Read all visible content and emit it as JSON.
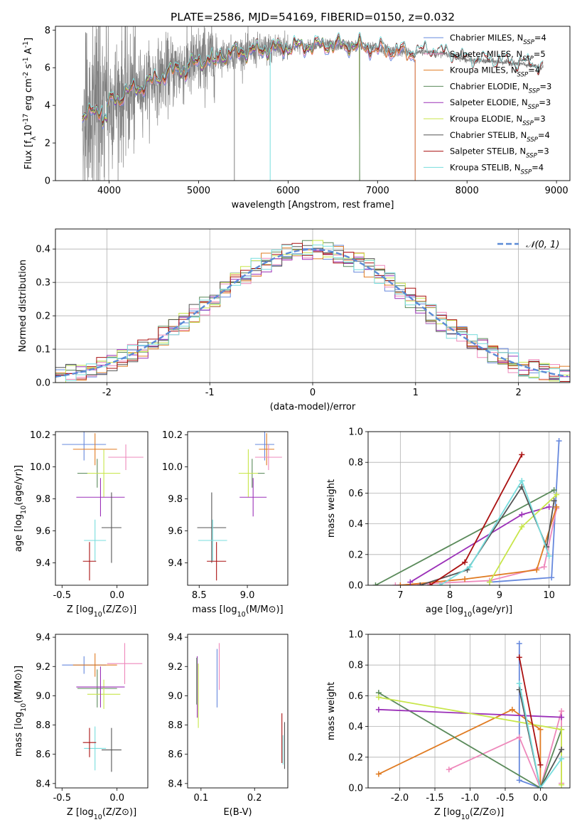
{
  "figure": {
    "title": "PLATE=2586, MJD=54169, FIBERID=0150, z=0.032"
  },
  "colors": {
    "Chabrier MILES": "#6688dd",
    "Salpeter MILES": "#ee88bb",
    "Kroupa MILES": "#e07b22",
    "Chabrier ELODIE": "#5a8a5a",
    "Salpeter ELODIE": "#9b30b8",
    "Kroupa ELODIE": "#c8e64a",
    "Chabrier STELIB": "#555555",
    "Salpeter STELIB": "#aa1111",
    "Kroupa STELIB": "#77dddd",
    "data": "#808080",
    "normal_curve": "#5b8bd6"
  },
  "chart_data": [
    {
      "id": "spectrum",
      "type": "line",
      "xlabel": "wavelength [Angstrom, rest frame]",
      "ylabel": "Flux [f_λ10^-17 erg cm^-2 s^-1 A^-1]",
      "xlim": [
        3400,
        9150
      ],
      "ylim": [
        0,
        8.2
      ],
      "xticks": [
        4000,
        5000,
        6000,
        7000,
        8000,
        9000
      ],
      "yticks": [
        0,
        2,
        4,
        6,
        8
      ],
      "legend_position": "top-right",
      "data_range": [
        3700,
        8850
      ],
      "continuum": [
        [
          3700,
          3.3
        ],
        [
          3800,
          3.6
        ],
        [
          3900,
          3.9
        ],
        [
          4000,
          4.2
        ],
        [
          4100,
          4.4
        ],
        [
          4200,
          4.7
        ],
        [
          4400,
          5.1
        ],
        [
          4600,
          5.6
        ],
        [
          4800,
          6.0
        ],
        [
          5000,
          6.3
        ],
        [
          5200,
          6.6
        ],
        [
          5400,
          6.8
        ],
        [
          5600,
          6.9
        ],
        [
          5800,
          7.0
        ],
        [
          6000,
          7.1
        ],
        [
          6200,
          7.15
        ],
        [
          6400,
          7.2
        ],
        [
          6600,
          7.2
        ],
        [
          6800,
          7.15
        ],
        [
          7000,
          7.0
        ],
        [
          7200,
          6.9
        ],
        [
          7400,
          6.8
        ],
        [
          7600,
          6.85
        ],
        [
          7800,
          6.7
        ],
        [
          8000,
          6.4
        ],
        [
          8200,
          6.35
        ],
        [
          8400,
          6.3
        ],
        [
          8600,
          6.2
        ],
        [
          8850,
          6.0
        ]
      ],
      "model_cutoffs": {
        "MILES": 7420,
        "ELODIE": 6800,
        "STELIB": 8850
      },
      "legend": [
        {
          "name": "Chabrier MILES",
          "label": "Chabrier MILES, N",
          "nssp": "=4"
        },
        {
          "name": "Salpeter MILES",
          "label": "Salpeter MILES, N",
          "nssp": "=5"
        },
        {
          "name": "Kroupa MILES",
          "label": "Kroupa MILES, N",
          "nssp": "=4"
        },
        {
          "name": "Chabrier ELODIE",
          "label": "Chabrier ELODIE, N",
          "nssp": "=3"
        },
        {
          "name": "Salpeter ELODIE",
          "label": "Salpeter ELODIE, N",
          "nssp": "=3"
        },
        {
          "name": "Kroupa ELODIE",
          "label": "Kroupa ELODIE, N",
          "nssp": "=3"
        },
        {
          "name": "Chabrier STELIB",
          "label": "Chabrier STELIB, N",
          "nssp": "=4"
        },
        {
          "name": "Salpeter STELIB",
          "label": "Salpeter STELIB, N",
          "nssp": "=3"
        },
        {
          "name": "Kroupa STELIB",
          "label": "Kroupa STELIB, N",
          "nssp": "=4"
        }
      ],
      "nssp_subscript": "SSP"
    },
    {
      "id": "residuals",
      "type": "histogram",
      "xlabel": "(data-model)/error",
      "ylabel": "Normed distribution",
      "xlim": [
        -2.5,
        2.5
      ],
      "ylim": [
        0,
        0.46
      ],
      "xticks": [
        -2,
        -1,
        0,
        1,
        2
      ],
      "yticks": [
        0.0,
        0.1,
        0.2,
        0.3,
        0.4
      ],
      "grid": true,
      "bin_width": 0.1,
      "legend_position": "top-right",
      "legend_label": "𝒩(0, 1)"
    },
    {
      "id": "age_vs_Z",
      "type": "errorbar",
      "xlabel": "Z [log10(Z/Z⊙)]",
      "ylabel": "age  [log10(age/yr)]",
      "xlim": [
        -0.56,
        0.28
      ],
      "ylim": [
        9.26,
        10.22
      ],
      "xticks": [
        -0.5,
        0.0
      ],
      "yticks": [
        9.4,
        9.6,
        9.8,
        10.0,
        10.2
      ],
      "points": [
        {
          "name": "Chabrier MILES",
          "x": -0.3,
          "xerr": 0.2,
          "y": 10.14,
          "yerr": 0.1
        },
        {
          "name": "Kroupa MILES",
          "x": -0.2,
          "xerr": 0.2,
          "y": 10.11,
          "yerr": 0.1
        },
        {
          "name": "Salpeter MILES",
          "x": 0.08,
          "xerr": 0.16,
          "y": 10.06,
          "yerr": 0.08
        },
        {
          "name": "Chabrier ELODIE",
          "x": -0.18,
          "xerr": 0.18,
          "y": 9.96,
          "yerr": 0.09
        },
        {
          "name": "Kroupa ELODIE",
          "x": -0.12,
          "xerr": 0.15,
          "y": 9.96,
          "yerr": 0.15
        },
        {
          "name": "Salpeter ELODIE",
          "x": -0.15,
          "xerr": 0.22,
          "y": 9.81,
          "yerr": 0.12
        },
        {
          "name": "Chabrier STELIB",
          "x": -0.05,
          "xerr": 0.09,
          "y": 9.62,
          "yerr": 0.22
        },
        {
          "name": "Kroupa STELIB",
          "x": -0.2,
          "xerr": 0.1,
          "y": 9.54,
          "yerr": 0.13
        },
        {
          "name": "Salpeter STELIB",
          "x": -0.25,
          "xerr": 0.06,
          "y": 9.41,
          "yerr": 0.12
        }
      ]
    },
    {
      "id": "age_vs_mass",
      "type": "errorbar",
      "xlabel": "mass [log10(M/M⊙)]",
      "ylabel": "",
      "xlim": [
        8.38,
        9.42
      ],
      "ylim": [
        9.26,
        10.22
      ],
      "xticks": [
        8.5,
        9.0
      ],
      "yticks": [
        9.4,
        9.6,
        9.8,
        10.0,
        10.2
      ],
      "points": [
        {
          "name": "Chabrier MILES",
          "x": 9.18,
          "xerr": 0.1,
          "y": 10.14,
          "yerr": 0.1
        },
        {
          "name": "Kroupa MILES",
          "x": 9.2,
          "xerr": 0.08,
          "y": 10.11,
          "yerr": 0.1
        },
        {
          "name": "Salpeter MILES",
          "x": 9.22,
          "xerr": 0.14,
          "y": 10.06,
          "yerr": 0.08
        },
        {
          "name": "Chabrier ELODIE",
          "x": 9.05,
          "xerr": 0.13,
          "y": 9.96,
          "yerr": 0.09
        },
        {
          "name": "Kroupa ELODIE",
          "x": 9.01,
          "xerr": 0.1,
          "y": 9.96,
          "yerr": 0.15
        },
        {
          "name": "Salpeter ELODIE",
          "x": 9.06,
          "xerr": 0.14,
          "y": 9.81,
          "yerr": 0.12
        },
        {
          "name": "Chabrier STELIB",
          "x": 8.63,
          "xerr": 0.15,
          "y": 9.62,
          "yerr": 0.22
        },
        {
          "name": "Kroupa STELIB",
          "x": 8.64,
          "xerr": 0.15,
          "y": 9.54,
          "yerr": 0.13
        },
        {
          "name": "Salpeter STELIB",
          "x": 8.68,
          "xerr": 0.1,
          "y": 9.41,
          "yerr": 0.12
        }
      ]
    },
    {
      "id": "weight_vs_age",
      "type": "line",
      "xlabel": "age  [log10(age/yr)]",
      "ylabel": "mass weight",
      "xlim": [
        6.35,
        10.42
      ],
      "ylim": [
        0,
        1.0
      ],
      "xticks": [
        7,
        8,
        9,
        10
      ],
      "yticks": [
        0.0,
        0.2,
        0.4,
        0.6,
        0.8,
        1.0
      ],
      "grid": true,
      "series": [
        {
          "name": "Chabrier MILES",
          "x": [
            8.8,
            10.05,
            10.2
          ],
          "y": [
            0.02,
            0.05,
            0.94
          ]
        },
        {
          "name": "Salpeter MILES",
          "x": [
            6.9,
            8.8,
            9.9,
            10.15
          ],
          "y": [
            0.0,
            0.03,
            0.12,
            0.5
          ]
        },
        {
          "name": "Kroupa MILES",
          "x": [
            7.0,
            8.3,
            9.75,
            10.15
          ],
          "y": [
            0.0,
            0.04,
            0.1,
            0.51
          ]
        },
        {
          "name": "Chabrier ELODIE",
          "x": [
            6.5,
            10.1
          ],
          "y": [
            0.0,
            0.62
          ]
        },
        {
          "name": "Salpeter ELODIE",
          "x": [
            7.2,
            9.45,
            10.0
          ],
          "y": [
            0.02,
            0.46,
            0.51
          ]
        },
        {
          "name": "Kroupa ELODIE",
          "x": [
            8.8,
            9.45,
            10.15
          ],
          "y": [
            0.02,
            0.38,
            0.59
          ]
        },
        {
          "name": "Chabrier STELIB",
          "x": [
            7.4,
            8.35,
            9.45,
            9.95,
            10.1
          ],
          "y": [
            0.0,
            0.1,
            0.64,
            0.25,
            0.55
          ]
        },
        {
          "name": "Salpeter STELIB",
          "x": [
            7.6,
            8.3,
            9.45
          ],
          "y": [
            0.0,
            0.15,
            0.85
          ]
        },
        {
          "name": "Kroupa STELIB",
          "x": [
            7.8,
            8.4,
            9.45,
            10.0
          ],
          "y": [
            0.0,
            0.12,
            0.68,
            0.19
          ]
        }
      ]
    },
    {
      "id": "mass_vs_Z",
      "type": "errorbar",
      "xlabel": "Z [log10(Z/Z⊙)]",
      "ylabel": "mass [log10(M/M⊙)]",
      "xlim": [
        -0.56,
        0.28
      ],
      "ylim": [
        8.37,
        9.42
      ],
      "xticks": [
        -0.5,
        0.0
      ],
      "yticks": [
        8.4,
        8.6,
        8.8,
        9.0,
        9.2,
        9.4
      ],
      "points": [
        {
          "name": "Chabrier MILES",
          "x": -0.3,
          "xerr": 0.2,
          "y": 9.21,
          "yerr": 0.06
        },
        {
          "name": "Kroupa MILES",
          "x": -0.2,
          "xerr": 0.2,
          "y": 9.21,
          "yerr": 0.08
        },
        {
          "name": "Salpeter MILES",
          "x": 0.07,
          "xerr": 0.16,
          "y": 9.22,
          "yerr": 0.14
        },
        {
          "name": "Chabrier ELODIE",
          "x": -0.18,
          "xerr": 0.18,
          "y": 9.05,
          "yerr": 0.13
        },
        {
          "name": "Kroupa ELODIE",
          "x": -0.12,
          "xerr": 0.15,
          "y": 9.01,
          "yerr": 0.1
        },
        {
          "name": "Salpeter ELODIE",
          "x": -0.15,
          "xerr": 0.22,
          "y": 9.06,
          "yerr": 0.14
        },
        {
          "name": "Chabrier STELIB",
          "x": -0.05,
          "xerr": 0.09,
          "y": 8.63,
          "yerr": 0.15
        },
        {
          "name": "Kroupa STELIB",
          "x": -0.2,
          "xerr": 0.1,
          "y": 8.64,
          "yerr": 0.15
        },
        {
          "name": "Salpeter STELIB",
          "x": -0.25,
          "xerr": 0.06,
          "y": 8.68,
          "yerr": 0.1
        }
      ]
    },
    {
      "id": "mass_vs_EBV",
      "type": "errorbar",
      "xlabel": "E(B-V)",
      "ylabel": "",
      "xlim": [
        0.075,
        0.262
      ],
      "ylim": [
        8.37,
        9.42
      ],
      "xticks": [
        0.1,
        0.2
      ],
      "yticks": [
        8.4,
        8.6,
        8.8,
        9.0,
        9.2,
        9.4
      ],
      "points": [
        {
          "name": "Chabrier MILES",
          "x": 0.13,
          "y": 9.12,
          "yerr": 0.2
        },
        {
          "name": "Salpeter MILES",
          "x": 0.134,
          "y": 9.2,
          "yerr": 0.16
        },
        {
          "name": "Salpeter ELODIE",
          "x": 0.093,
          "y": 9.06,
          "yerr": 0.21
        },
        {
          "name": "Kroupa ELODIE",
          "x": 0.095,
          "y": 9.0,
          "yerr": 0.22
        },
        {
          "name": "Chabrier ELODIE",
          "x": 0.092,
          "y": 9.1,
          "yerr": 0.16
        },
        {
          "name": "Salpeter STELIB",
          "x": 0.251,
          "y": 8.71,
          "yerr": 0.17
        },
        {
          "name": "Chabrier STELIB",
          "x": 0.256,
          "y": 8.66,
          "yerr": 0.16
        },
        {
          "name": "Kroupa STELIB",
          "x": 0.253,
          "y": 8.63,
          "yerr": 0.1
        }
      ]
    },
    {
      "id": "weight_vs_Z",
      "type": "line",
      "xlabel": "Z [log10(Z/Z⊙)]",
      "ylabel": "mass weight",
      "xlim": [
        -2.45,
        0.42
      ],
      "ylim": [
        0,
        1.0
      ],
      "xticks": [
        -2.0,
        -1.5,
        -1.0,
        -0.5,
        0.0
      ],
      "yticks": [
        0.0,
        0.2,
        0.4,
        0.6,
        0.8,
        1.0
      ],
      "grid": true,
      "series": [
        {
          "name": "Chabrier MILES",
          "x": [
            -0.3,
            -0.3,
            0.0
          ],
          "y": [
            0.94,
            0.05,
            0.0
          ]
        },
        {
          "name": "Salpeter MILES",
          "x": [
            -1.3,
            -0.3,
            0.0,
            0.3,
            0.3
          ],
          "y": [
            0.12,
            0.33,
            0.0,
            0.5,
            0.03
          ]
        },
        {
          "name": "Kroupa MILES",
          "x": [
            -2.3,
            -0.4,
            0.0,
            0.0
          ],
          "y": [
            0.09,
            0.51,
            0.38,
            0.0
          ]
        },
        {
          "name": "Chabrier ELODIE",
          "x": [
            -2.3,
            0.0,
            0.3
          ],
          "y": [
            0.62,
            0.0,
            0.38
          ]
        },
        {
          "name": "Salpeter ELODIE",
          "x": [
            -2.3,
            0.3
          ],
          "y": [
            0.51,
            0.46
          ]
        },
        {
          "name": "Kroupa ELODIE",
          "x": [
            -2.3,
            0.3,
            0.3
          ],
          "y": [
            0.59,
            0.38,
            0.02
          ]
        },
        {
          "name": "Chabrier STELIB",
          "x": [
            -0.3,
            0.0,
            0.3
          ],
          "y": [
            0.64,
            0.0,
            0.25
          ]
        },
        {
          "name": "Salpeter STELIB",
          "x": [
            -0.3,
            0.0
          ],
          "y": [
            0.85,
            0.15
          ]
        },
        {
          "name": "Kroupa STELIB",
          "x": [
            -0.3,
            0.0,
            0.3
          ],
          "y": [
            0.68,
            0.0,
            0.19
          ]
        }
      ]
    }
  ]
}
